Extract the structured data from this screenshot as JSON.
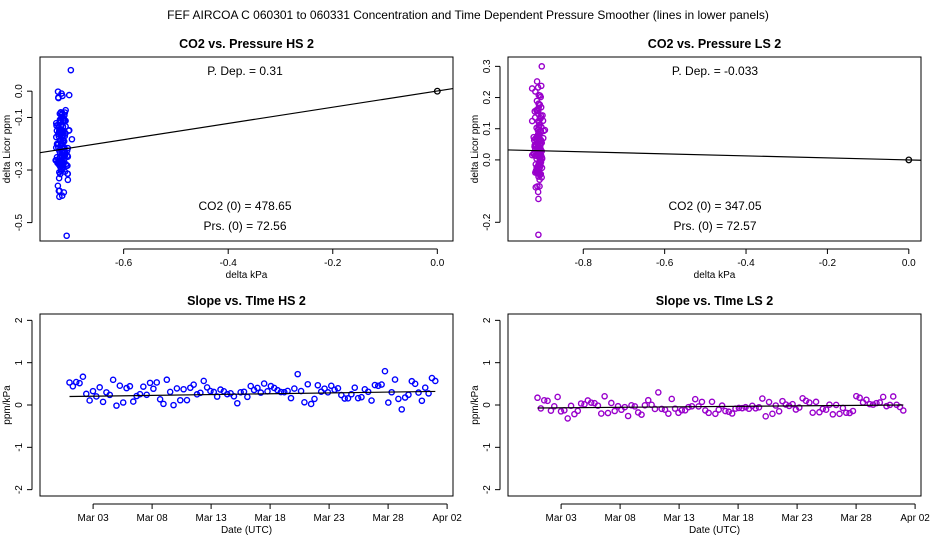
{
  "page_title": "FEF   AIRCOA C   060301 to 060331   Concentration and Time Dependent Pressure Smoother (lines in lower panels)",
  "chart_data": [
    {
      "id": "p1",
      "type": "scatter",
      "title": "CO2 vs. Pressure HS 2",
      "xlabel": "delta kPa",
      "ylabel": "delta Licor ppm",
      "xlim": [
        -0.76,
        0.03
      ],
      "ylim": [
        -0.57,
        0.13
      ],
      "xticks": [
        -0.6,
        -0.4,
        -0.2,
        0.0
      ],
      "xtick_labels": [
        "-0.6",
        "-0.4",
        "-0.2",
        "0.0"
      ],
      "yticks": [
        -0.5,
        -0.3,
        -0.1,
        0.0
      ],
      "ytick_labels": [
        "-0.5",
        "-0.3",
        "-0.1",
        "0.0"
      ],
      "color": "#0000ff",
      "annotations": [
        "P. Dep. =  0.31",
        "CO2 (0) =  478.65",
        "Prs. (0) =  72.56"
      ],
      "fit_line": {
        "x": [
          -0.76,
          0.03
        ],
        "y": [
          -0.234,
          0.01
        ]
      },
      "reference_point": {
        "x": 0.0,
        "y": 0.0
      },
      "cluster": {
        "seed": 11,
        "n": 130,
        "x_center": -0.718,
        "x_spread": 0.007,
        "y_min": -0.55,
        "y_max": 0.08,
        "y_center": -0.2,
        "y_spread": 0.08,
        "x_max_extra": 0.017
      }
    },
    {
      "id": "p2",
      "type": "scatter",
      "title": "CO2 vs. Pressure LS 2",
      "xlabel": "delta kPa",
      "ylabel": "delta Licor ppm",
      "xlim": [
        -0.985,
        0.03
      ],
      "ylim": [
        -0.26,
        0.33
      ],
      "xticks": [
        -0.8,
        -0.6,
        -0.4,
        -0.2,
        0.0
      ],
      "xtick_labels": [
        "-0.8",
        "-0.6",
        "-0.4",
        "-0.2",
        "0.0"
      ],
      "yticks": [
        -0.2,
        0.0,
        0.1,
        0.2,
        0.3
      ],
      "ytick_labels": [
        "-0.2",
        "0.0",
        "0.1",
        "0.2",
        "0.3"
      ],
      "color": "#9900cc",
      "annotations": [
        "P. Dep. =  -0.033",
        "CO2 (0) =  347.05",
        "Prs. (0) =  72.57"
      ],
      "fit_line": {
        "x": [
          -0.985,
          0.03
        ],
        "y": [
          0.032,
          -0.001
        ]
      },
      "reference_point": {
        "x": 0.0,
        "y": 0.0
      },
      "cluster": {
        "seed": 29,
        "n": 130,
        "x_center": -0.91,
        "x_spread": 0.006,
        "y_min": -0.24,
        "y_max": 0.3,
        "y_center": 0.04,
        "y_spread": 0.08,
        "x_max_extra": 0.008
      }
    },
    {
      "id": "p3",
      "type": "scatter",
      "title": "Slope vs. TIme HS 2",
      "xlabel": "Date (UTC)",
      "ylabel": "ppm/kPa",
      "xlim": [
        -2.5,
        32.5
      ],
      "ylim": [
        -2.15,
        2.15
      ],
      "xticks": [
        2,
        7,
        12,
        17,
        22,
        27,
        32
      ],
      "xtick_labels": [
        "Mar 03",
        "Mar 08",
        "Mar 13",
        "Mar 18",
        "Mar 23",
        "Mar 28",
        "Apr 02"
      ],
      "yticks": [
        -2,
        -1,
        0,
        1,
        2
      ],
      "ytick_labels": [
        "-2",
        "-1",
        "0",
        "1",
        "2"
      ],
      "color": "#0000ff",
      "fit_line": {
        "x": [
          0,
          31
        ],
        "y": [
          0.2,
          0.32
        ]
      },
      "series": {
        "x_start": 0,
        "x_end": 31,
        "n": 110,
        "level": 0.3,
        "amp": 0.16,
        "seed": 7
      }
    },
    {
      "id": "p4",
      "type": "scatter",
      "title": "Slope vs. TIme LS 2",
      "xlabel": "Date (UTC)",
      "ylabel": "ppm/kPa",
      "xlim": [
        -2.5,
        32.5
      ],
      "ylim": [
        -2.15,
        2.15
      ],
      "xticks": [
        2,
        7,
        12,
        17,
        22,
        27,
        32
      ],
      "xtick_labels": [
        "Mar 03",
        "Mar 08",
        "Mar 13",
        "Mar 18",
        "Mar 23",
        "Mar 28",
        "Apr 02"
      ],
      "yticks": [
        -2,
        -1,
        0,
        1,
        2
      ],
      "ytick_labels": [
        "-2",
        "-1",
        "0",
        "1",
        "2"
      ],
      "color": "#9900cc",
      "fit_line": {
        "x": [
          0,
          31
        ],
        "y": [
          -0.07,
          0.0
        ]
      },
      "series": {
        "x_start": 0,
        "x_end": 31,
        "n": 110,
        "level": -0.03,
        "amp": 0.12,
        "seed": 19
      }
    }
  ]
}
